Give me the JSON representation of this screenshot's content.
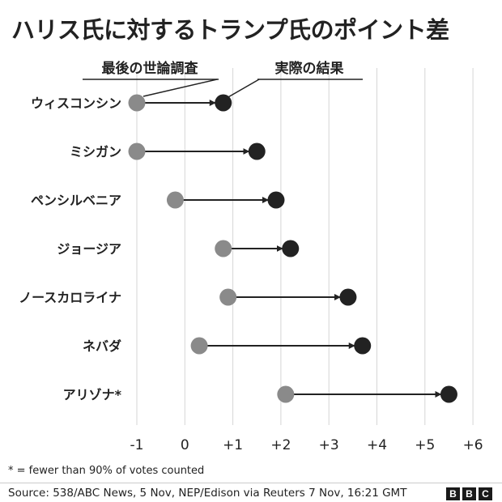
{
  "title": "ハリス氏に対するトランプ氏のポイント差",
  "legend": {
    "poll_label": "最後の世論調査",
    "result_label": "実際の結果"
  },
  "chart_data": {
    "type": "dumbbell",
    "title": "ハリス氏に対するトランプ氏のポイント差",
    "xlim": [
      -1,
      6
    ],
    "x_ticks": [
      "-1",
      "0",
      "+1",
      "+2",
      "+3",
      "+4",
      "+5",
      "+6"
    ],
    "x_tick_values": [
      -1,
      0,
      1,
      2,
      3,
      4,
      5,
      6
    ],
    "grid": true,
    "series": [
      {
        "name": "最後の世論調査",
        "color": "#8a8a8a"
      },
      {
        "name": "実際の結果",
        "color": "#222222"
      }
    ],
    "states": [
      {
        "name": "ウィスコンシン",
        "poll": -1.0,
        "result": 0.8
      },
      {
        "name": "ミシガン",
        "poll": -1.0,
        "result": 1.5
      },
      {
        "name": "ペンシルベニア",
        "poll": -0.2,
        "result": 1.9
      },
      {
        "name": "ジョージア",
        "poll": 0.8,
        "result": 2.2
      },
      {
        "name": "ノースカロライナ",
        "poll": 0.9,
        "result": 3.4
      },
      {
        "name": "ネバダ",
        "poll": 0.3,
        "result": 3.7
      },
      {
        "name": "アリゾナ*",
        "poll": 2.1,
        "result": 5.5
      }
    ]
  },
  "footnote": "* = fewer than 90% of votes counted",
  "source": "Source: 538/ABC News, 5 Nov, NEP/Edison via Reuters 7 Nov, 16:21 GMT",
  "logo": [
    "B",
    "B",
    "C"
  ]
}
